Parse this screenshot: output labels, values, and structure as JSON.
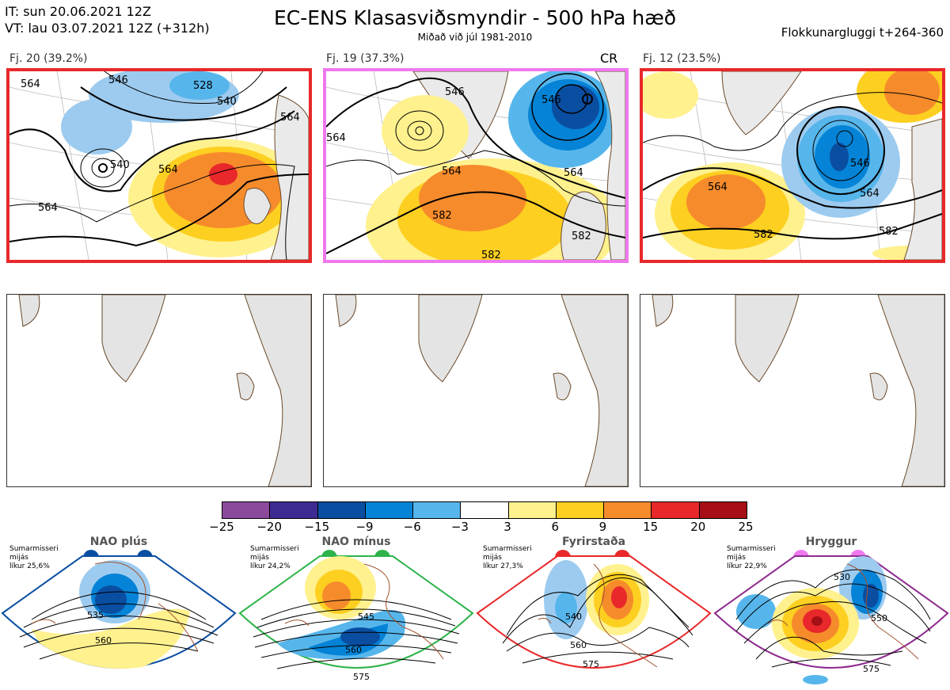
{
  "header": {
    "it_line": "IT: sun 20.06.2021 12Z",
    "vt_line": "VT: lau 03.07.2021 12Z  (+312h)",
    "title": "EC-ENS Klasasviðsmyndir - 500 hPa hæð",
    "subtitle": "Miðað við júl 1981-2010",
    "window": "Flokkunargluggi t+264-360"
  },
  "clusters": [
    {
      "label": "Fj. 20 (39.2%)",
      "frame_color": "#e8282a",
      "cr": "",
      "contours": [
        "564",
        "546",
        "528",
        "540",
        "564",
        "540",
        "564",
        "564"
      ]
    },
    {
      "label": "Fj. 19 (37.3%)",
      "frame_color": "#ef78ee",
      "cr": "CR",
      "contours": [
        "546",
        "546",
        "564",
        "564",
        "582",
        "582",
        "582",
        "564"
      ]
    },
    {
      "label": "Fj. 12 (23.5%)",
      "frame_color": "#e8282a",
      "cr": "",
      "contours": [
        "564",
        "546",
        "564",
        "582",
        "582"
      ]
    }
  ],
  "colorbar": {
    "ticks": [
      "−25",
      "−20",
      "−15",
      "−9",
      "−6",
      "−3",
      "3",
      "6",
      "9",
      "15",
      "20",
      "25"
    ],
    "colors": [
      "#8b4a9c",
      "#3f2a92",
      "#0a4ea2",
      "#0583d6",
      "#56b6ec",
      "#ffffff",
      "#fff18e",
      "#fdcf20",
      "#f68b2c",
      "#e8282a",
      "#a50f15"
    ]
  },
  "regimes": [
    {
      "name": "NAO plús",
      "info": [
        "Sumarmisseri",
        "mijás",
        "líkur 25,6%"
      ],
      "dot_color": "#0a4ea2",
      "frame_color": "#0a4ea2",
      "contours": [
        "535",
        "560"
      ]
    },
    {
      "name": "NAO mínus",
      "info": [
        "Sumarmisseri",
        "mijás",
        "líkur 24,2%"
      ],
      "dot_color": "#2db34a",
      "frame_color": "#2db34a",
      "contours": [
        "545",
        "560",
        "575"
      ]
    },
    {
      "name": "Fyrirstaða",
      "info": [
        "Sumarmisseri",
        "mijás",
        "líkur 27,3%"
      ],
      "dot_color": "#e8282a",
      "frame_color": "#e8282a",
      "contours": [
        "540",
        "560",
        "575"
      ]
    },
    {
      "name": "Hryggur",
      "info": [
        "Sumarmisseri",
        "mijás",
        "líkur 22,9%"
      ],
      "dot_color": "#ef78ee",
      "frame_color": "#8e2c8e",
      "contours": [
        "530",
        "550",
        "575"
      ]
    }
  ]
}
